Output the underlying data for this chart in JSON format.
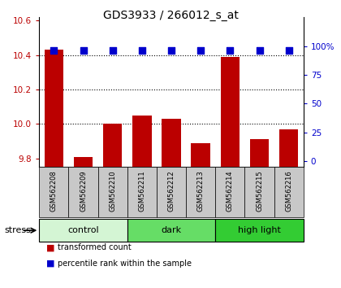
{
  "title": "GDS3933 / 266012_s_at",
  "samples": [
    "GSM562208",
    "GSM562209",
    "GSM562210",
    "GSM562211",
    "GSM562212",
    "GSM562213",
    "GSM562214",
    "GSM562215",
    "GSM562216"
  ],
  "transformed_counts": [
    10.43,
    9.81,
    10.0,
    10.05,
    10.03,
    9.89,
    10.39,
    9.91,
    9.97
  ],
  "percentile_ranks": [
    96,
    96,
    96,
    96,
    96,
    96,
    96,
    96,
    96
  ],
  "ylim_left": [
    9.75,
    10.62
  ],
  "ylim_right": [
    -5,
    125
  ],
  "yticks_left": [
    9.8,
    10.0,
    10.2,
    10.4,
    10.6
  ],
  "yticks_right": [
    0,
    25,
    50,
    75,
    100
  ],
  "bar_color": "#bb0000",
  "dot_color": "#0000cc",
  "groups": [
    {
      "label": "control",
      "indices": [
        0,
        1,
        2
      ],
      "color": "#d4f5d4"
    },
    {
      "label": "dark",
      "indices": [
        3,
        4,
        5
      ],
      "color": "#66dd66"
    },
    {
      "label": "high light",
      "indices": [
        6,
        7,
        8
      ],
      "color": "#33cc33"
    }
  ],
  "group_bg_color": "#c8c8c8",
  "stress_label": "stress",
  "legend_items": [
    {
      "color": "#bb0000",
      "label": "transformed count"
    },
    {
      "color": "#0000cc",
      "label": "percentile rank within the sample"
    }
  ],
  "bar_bottom": 9.75,
  "dot_size": 35,
  "gridlines": [
    10.0,
    10.2,
    10.4
  ],
  "title_fontsize": 10
}
